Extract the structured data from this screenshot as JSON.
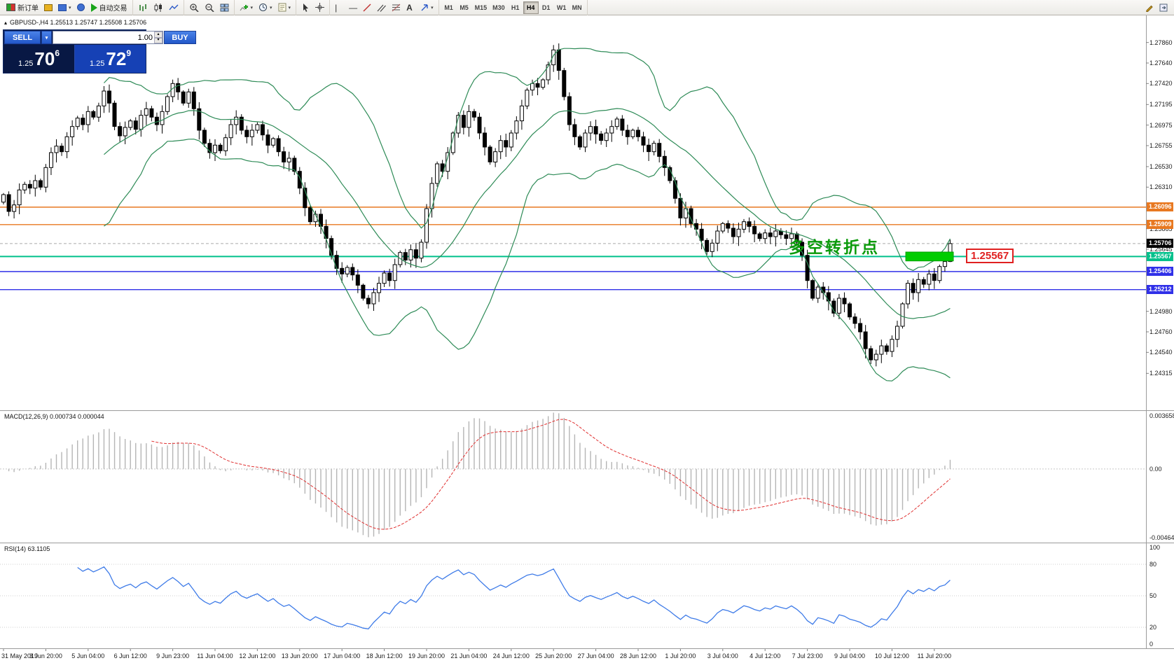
{
  "toolbar": {
    "new_order_label": "新订单",
    "auto_trading_label": "自动交易",
    "timeframes": [
      "M1",
      "M5",
      "M15",
      "M30",
      "H1",
      "H4",
      "D1",
      "W1",
      "MN"
    ],
    "active_timeframe": "H4"
  },
  "chart": {
    "symbol_ohlc": "GBPUSD-,H4  1.25513 1.25747 1.25508 1.25706",
    "annotation": "多空转折点",
    "annotation_color": "#0a9a0a",
    "callout": "1.25567",
    "callout_color": "#e02020"
  },
  "one_click": {
    "sell_label": "SELL",
    "buy_label": "BUY",
    "volume": "1.00",
    "sell_price": {
      "prefix": "1.25",
      "big": "70",
      "sup": "6"
    },
    "buy_price": {
      "prefix": "1.25",
      "big": "72",
      "sup": "9"
    }
  },
  "macd_panel": {
    "label": "MACD(12,26,9) 0.000734 0.000044"
  },
  "rsi_panel": {
    "label": "RSI(14) 63.1105"
  },
  "chart_data": {
    "type": "candlestick",
    "symbol": "GBPUSD-",
    "period": "H4",
    "ylim": [
      1.2392,
      1.2815
    ],
    "current_ohlc": [
      1.25513,
      1.25747,
      1.25508,
      1.25706
    ],
    "price_ticks": [
      "1.27860",
      "1.27640",
      "1.27420",
      "1.27195",
      "1.26975",
      "1.26755",
      "1.26530",
      "1.26310",
      "1.25865",
      "1.25645",
      "1.24980",
      "1.24760",
      "1.24540",
      "1.24315"
    ],
    "time_labels": [
      "31 May 2019",
      "3 Jun 20:00",
      "5 Jun 04:00",
      "6 Jun 12:00",
      "9 Jun 23:00",
      "11 Jun 04:00",
      "12 Jun 12:00",
      "13 Jun 20:00",
      "17 Jun 04:00",
      "18 Jun 12:00",
      "19 Jun 20:00",
      "21 Jun 04:00",
      "24 Jun 12:00",
      "25 Jun 20:00",
      "27 Jun 04:00",
      "28 Jun 12:00",
      "1 Jul 20:00",
      "3 Jul 04:00",
      "4 Jul 12:00",
      "7 Jul 23:00",
      "9 Jul 04:00",
      "10 Jul 12:00",
      "11 Jul 20:00"
    ],
    "closes": [
      1.2623,
      1.2605,
      1.2612,
      1.2628,
      1.2634,
      1.263,
      1.2638,
      1.2631,
      1.2652,
      1.2668,
      1.2675,
      1.2669,
      1.2685,
      1.2696,
      1.2705,
      1.2698,
      1.2712,
      1.2706,
      1.2718,
      1.2734,
      1.2721,
      1.2696,
      1.2686,
      1.2695,
      1.2702,
      1.2693,
      1.2708,
      1.2715,
      1.2706,
      1.2698,
      1.2712,
      1.2728,
      1.2742,
      1.2733,
      1.2721,
      1.2733,
      1.2715,
      1.2692,
      1.2678,
      1.2668,
      1.2676,
      1.267,
      1.2684,
      1.2698,
      1.2706,
      1.2692,
      1.2685,
      1.2692,
      1.2698,
      1.2687,
      1.2676,
      1.2683,
      1.2669,
      1.2658,
      1.2662,
      1.2648,
      1.263,
      1.2609,
      1.2594,
      1.2602,
      1.2589,
      1.2576,
      1.2558,
      1.2544,
      1.2538,
      1.2545,
      1.2537,
      1.2526,
      1.2512,
      1.2506,
      1.2518,
      1.2528,
      1.2539,
      1.2531,
      1.2548,
      1.2561,
      1.2553,
      1.2564,
      1.2555,
      1.2572,
      1.2608,
      1.2635,
      1.2656,
      1.2648,
      1.2668,
      1.2689,
      1.2708,
      1.2695,
      1.2712,
      1.2706,
      1.2689,
      1.2674,
      1.2658,
      1.2669,
      1.2681,
      1.2674,
      1.2689,
      1.2702,
      1.2718,
      1.2735,
      1.2742,
      1.2738,
      1.2746,
      1.2762,
      1.2778,
      1.2756,
      1.2728,
      1.2698,
      1.2685,
      1.2674,
      1.2689,
      1.2696,
      1.2688,
      1.2681,
      1.2689,
      1.2696,
      1.2704,
      1.2692,
      1.2685,
      1.2692,
      1.2685,
      1.2676,
      1.2669,
      1.2678,
      1.2664,
      1.2652,
      1.2638,
      1.2619,
      1.2598,
      1.2608,
      1.2592,
      1.2586,
      1.2574,
      1.2562,
      1.2571,
      1.2584,
      1.2592,
      1.2587,
      1.2578,
      1.2586,
      1.2594,
      1.2589,
      1.2581,
      1.2576,
      1.2582,
      1.2578,
      1.2584,
      1.258,
      1.2576,
      1.2581,
      1.2572,
      1.2558,
      1.2531,
      1.2512,
      1.2524,
      1.2518,
      1.2509,
      1.2496,
      1.2512,
      1.2506,
      1.2492,
      1.2485,
      1.2476,
      1.2458,
      1.2446,
      1.2452,
      1.2461,
      1.2455,
      1.2468,
      1.2482,
      1.2506,
      1.2528,
      1.2518,
      1.2532,
      1.2527,
      1.2538,
      1.2531,
      1.2546,
      1.25513,
      1.25706
    ],
    "levels": [
      {
        "price": 1.26096,
        "label": "1.26096",
        "color": "#E87820",
        "width": 1.4
      },
      {
        "price": 1.25909,
        "label": "1.25909",
        "color": "#E87820",
        "width": 1.4
      },
      {
        "price": 1.25567,
        "label": "1.25567",
        "color": "#00C08B",
        "width": 2
      },
      {
        "price": 1.25406,
        "label": "1.25406",
        "color": "#3030E8",
        "width": 1.4
      },
      {
        "price": 1.25212,
        "label": "1.25212",
        "color": "#3030E8",
        "width": 1.4
      }
    ],
    "bid_line": {
      "price": 1.25706,
      "label": "1.25706",
      "tag_bg": "#000000",
      "line_color": "#ababab"
    },
    "highlight_box": {
      "from_candle": 171,
      "to_candle": 180,
      "price_top": 1.25615,
      "price_bottom": 1.2552,
      "color": "#00CC00"
    },
    "indicators": {
      "bollinger": {
        "period": 20,
        "deviation": 2,
        "color": "#2E8B57"
      },
      "macd": {
        "fast": 12,
        "slow": 26,
        "signal": 9,
        "value": "0.000734",
        "signal_value": "0.000044",
        "scale_max": "0.003658",
        "scale_zero": "0.00",
        "scale_min": "-0.004645",
        "hist_color": "#b5b5b5",
        "signal_color": "#e03030"
      },
      "rsi": {
        "period": 14,
        "value": "63.1105",
        "color": "#3E7BE8",
        "scale": [
          "100",
          "80",
          "50",
          "20",
          "0"
        ],
        "levels": [
          80,
          50,
          20
        ]
      }
    }
  }
}
